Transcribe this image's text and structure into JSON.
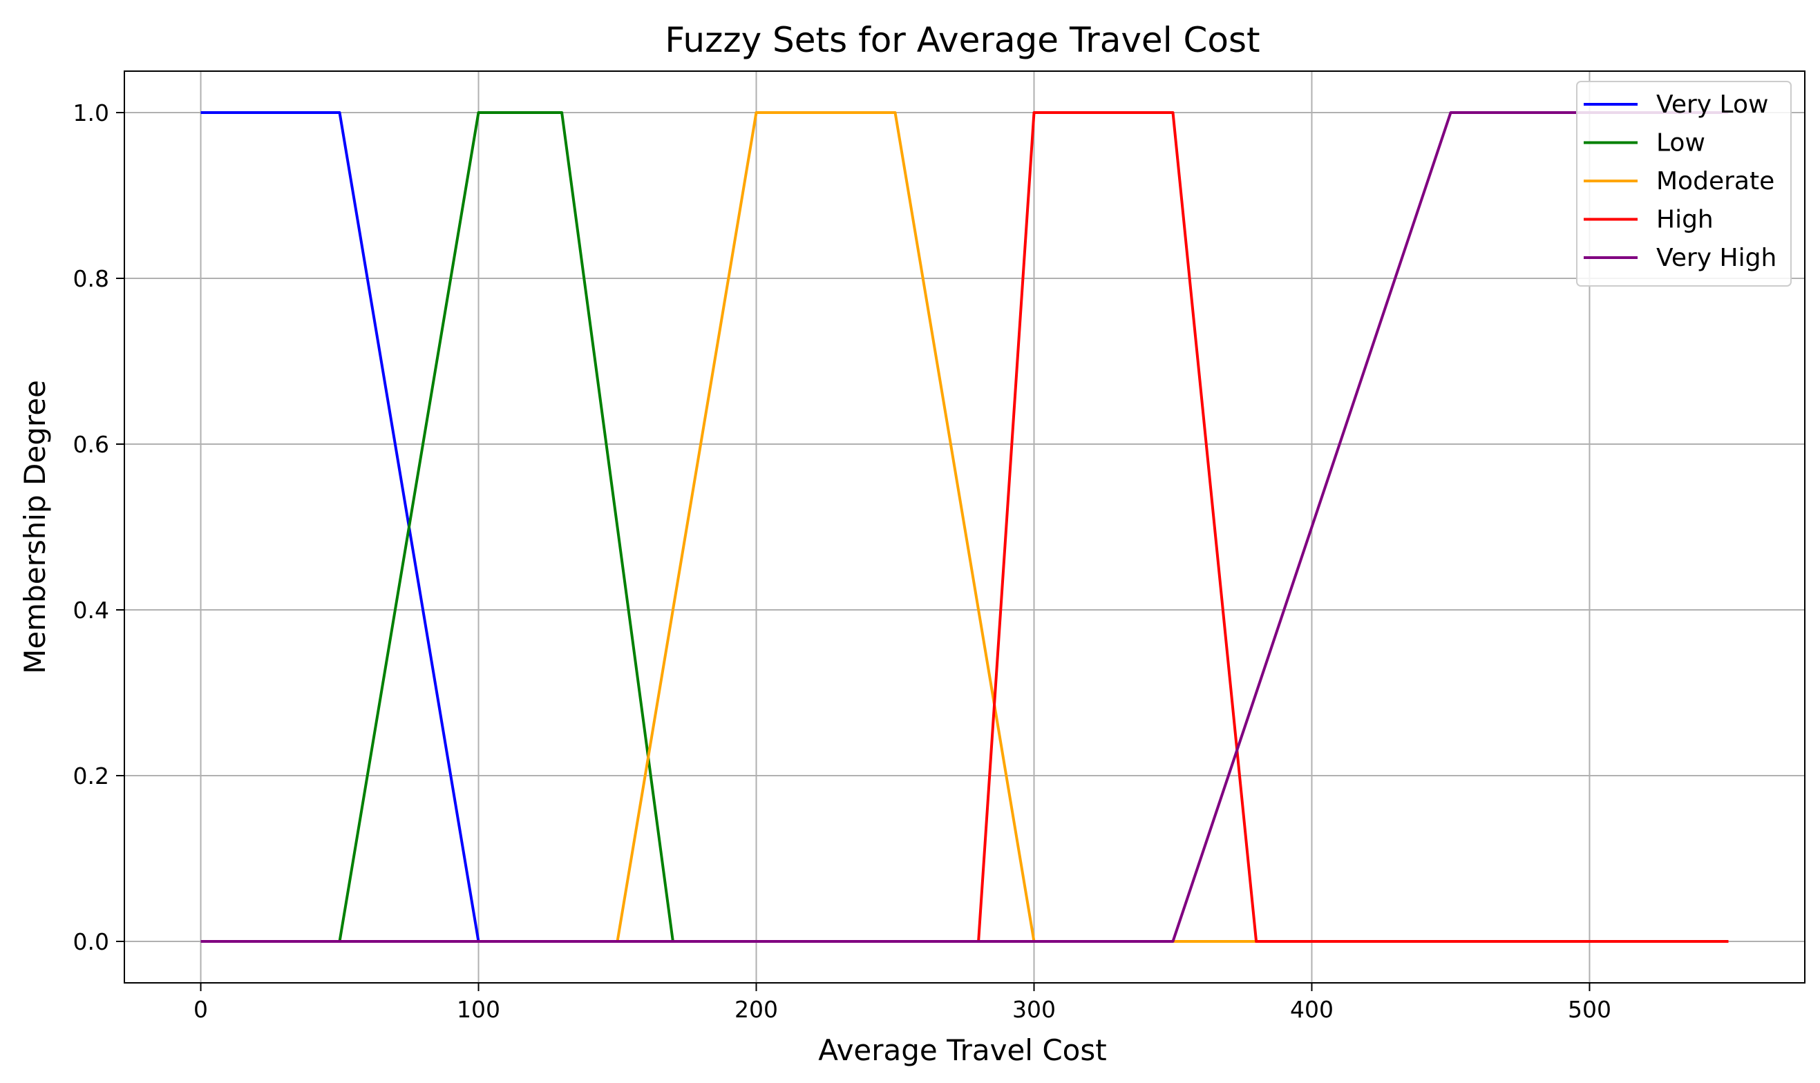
{
  "chart_data": {
    "type": "line",
    "title": "Fuzzy Sets for Average Travel Cost",
    "xlabel": "Average Travel Cost",
    "ylabel": "Membership Degree",
    "xlim": [
      -27.5,
      577.5
    ],
    "ylim": [
      -0.05,
      1.05
    ],
    "xticks": [
      0,
      100,
      200,
      300,
      400,
      500
    ],
    "xtick_labels": [
      "0",
      "100",
      "200",
      "300",
      "400",
      "500"
    ],
    "yticks": [
      0.0,
      0.2,
      0.4,
      0.6,
      0.8,
      1.0
    ],
    "ytick_labels": [
      "0.0",
      "0.2",
      "0.4",
      "0.6",
      "0.8",
      "1.0"
    ],
    "grid": true,
    "legend_position": "top-right",
    "series": [
      {
        "name": "Very Low",
        "color": "#0000ff",
        "points": [
          [
            0,
            1.0
          ],
          [
            50,
            1.0
          ],
          [
            100,
            0.0
          ],
          [
            550,
            0.0
          ]
        ]
      },
      {
        "name": "Low",
        "color": "#008000",
        "points": [
          [
            0,
            0.0
          ],
          [
            50,
            0.0
          ],
          [
            100,
            1.0
          ],
          [
            130,
            1.0
          ],
          [
            170,
            0.0
          ],
          [
            550,
            0.0
          ]
        ]
      },
      {
        "name": "Moderate",
        "color": "#ffa500",
        "points": [
          [
            0,
            0.0
          ],
          [
            150,
            0.0
          ],
          [
            200,
            1.0
          ],
          [
            250,
            1.0
          ],
          [
            300,
            0.0
          ],
          [
            550,
            0.0
          ]
        ]
      },
      {
        "name": "High",
        "color": "#ff0000",
        "points": [
          [
            0,
            0.0
          ],
          [
            280,
            0.0
          ],
          [
            300,
            1.0
          ],
          [
            350,
            1.0
          ],
          [
            380,
            0.0
          ],
          [
            550,
            0.0
          ]
        ]
      },
      {
        "name": "Very High",
        "color": "#800080",
        "points": [
          [
            0,
            0.0
          ],
          [
            350,
            0.0
          ],
          [
            450,
            1.0
          ],
          [
            550,
            1.0
          ]
        ]
      }
    ]
  }
}
